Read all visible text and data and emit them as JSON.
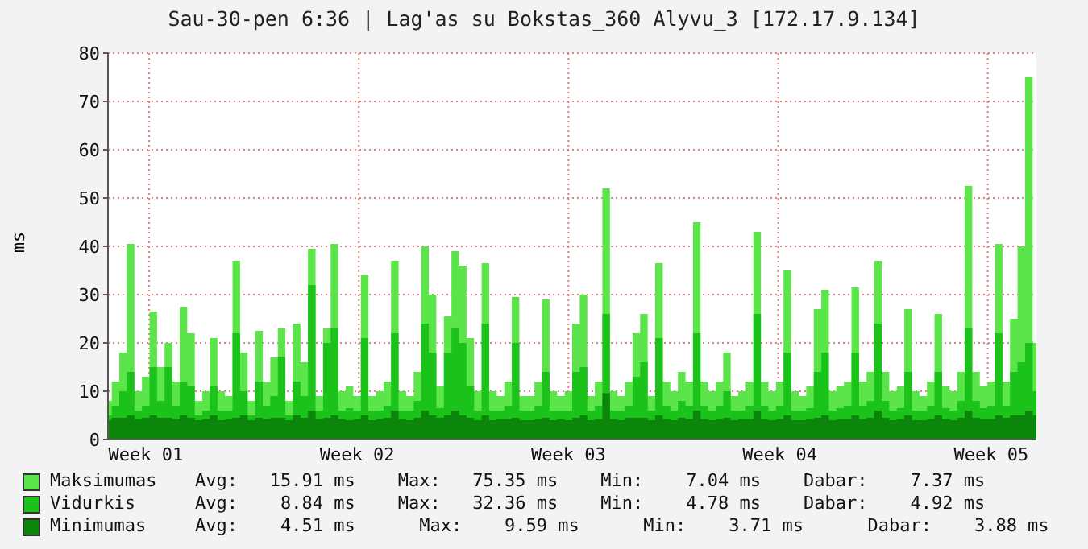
{
  "chart_data": {
    "type": "area",
    "title": "Sau-30-pen 6:36 | Lag'as su Bokstas_360 Alyvu_3 [172.17.9.134]",
    "ylabel": "ms",
    "categories": [
      null,
      null,
      null,
      null,
      null,
      "Week 01",
      null,
      null,
      null,
      null,
      null,
      null,
      null,
      null,
      null,
      null,
      null,
      null,
      null,
      null,
      null,
      null,
      null,
      null,
      null,
      null,
      null,
      null,
      null,
      null,
      null,
      null,
      null,
      "Week 02",
      null,
      null,
      null,
      null,
      null,
      null,
      null,
      null,
      null,
      null,
      null,
      null,
      null,
      null,
      null,
      null,
      null,
      null,
      null,
      null,
      null,
      null,
      null,
      null,
      null,
      null,
      null,
      "Week 03",
      null,
      null,
      null,
      null,
      null,
      null,
      null,
      null,
      null,
      null,
      null,
      null,
      null,
      null,
      null,
      null,
      null,
      null,
      null,
      null,
      null,
      null,
      null,
      null,
      null,
      null,
      null,
      "Week 04",
      null,
      null,
      null,
      null,
      null,
      null,
      null,
      null,
      null,
      null,
      null,
      null,
      null,
      null,
      null,
      null,
      null,
      null,
      null,
      null,
      null,
      null,
      null,
      null,
      null,
      null,
      null,
      "Week 05",
      null,
      null,
      null,
      null,
      null,
      null
    ],
    "series": [
      {
        "name": "Maksimumas",
        "color": "#5be54b",
        "values": [
          8,
          12,
          18,
          40.5,
          10,
          13,
          26.5,
          15,
          20,
          12,
          27.5,
          22,
          8,
          10,
          21,
          10,
          9,
          37,
          18,
          8,
          22.5,
          12,
          17,
          23,
          8,
          24,
          16,
          39.5,
          9,
          23,
          40.5,
          10,
          11,
          9,
          34,
          9,
          10,
          12,
          37,
          10,
          9,
          14,
          40,
          30,
          11,
          25.5,
          39,
          36,
          21,
          10,
          36.5,
          10,
          9,
          12,
          29.5,
          9,
          9,
          12,
          29,
          10,
          9,
          10,
          24,
          30,
          9,
          12,
          52,
          10,
          9,
          12,
          22,
          26,
          9,
          36.5,
          12,
          10,
          14,
          12,
          45,
          12,
          10,
          12,
          18,
          9,
          10,
          12,
          43,
          12,
          10,
          12,
          35,
          10,
          9,
          11,
          27,
          31,
          10,
          11,
          12,
          31.5,
          12,
          14,
          37,
          14,
          10,
          11,
          27,
          10,
          9,
          12,
          26,
          11,
          10,
          14,
          52.5,
          14,
          11,
          12,
          40.5,
          12,
          25,
          40,
          75,
          20
        ]
      },
      {
        "name": "Vidurkis",
        "color": "#1ac21a",
        "values": [
          5,
          7,
          10,
          14,
          6,
          7,
          15,
          8,
          15,
          7,
          12,
          11,
          5,
          6,
          11,
          6,
          6,
          22,
          10,
          5,
          12,
          7,
          9,
          17,
          5,
          12,
          9,
          32,
          6,
          20,
          23,
          6,
          6.5,
          6,
          21,
          6,
          6,
          7,
          22,
          6,
          6,
          8,
          24,
          18,
          6.5,
          18,
          23,
          20,
          11,
          6,
          24,
          6,
          6,
          7,
          20,
          6,
          6,
          7,
          14,
          6,
          6,
          6,
          14,
          15,
          6,
          7,
          26,
          6,
          6,
          7,
          13,
          16,
          6,
          21,
          7,
          6,
          8,
          7,
          22,
          7,
          6,
          7,
          10,
          6,
          6,
          7,
          26,
          7,
          6,
          7,
          18,
          6,
          6,
          6.5,
          14,
          18,
          6,
          6.5,
          7,
          18,
          7,
          8,
          24,
          8,
          6,
          6.5,
          14,
          6,
          6,
          7,
          14,
          6.5,
          6,
          8,
          23,
          8,
          6.5,
          7,
          22,
          7,
          14,
          16,
          20,
          10
        ]
      },
      {
        "name": "Minimumas",
        "color": "#0b860b",
        "values": [
          4,
          4.5,
          4.5,
          5,
          4.2,
          4.5,
          5,
          4.5,
          4.5,
          4.2,
          5,
          4.5,
          4,
          4.2,
          5,
          4,
          4.2,
          4.5,
          5,
          4,
          4.5,
          4.2,
          4.5,
          4.5,
          4,
          5,
          4.5,
          6,
          4.2,
          4.5,
          5,
          4.2,
          4,
          4.2,
          5,
          4,
          4.2,
          4.5,
          6,
          4.2,
          4,
          4.5,
          6,
          5,
          4.5,
          5,
          6,
          5,
          4.5,
          4,
          5,
          4,
          4.2,
          4.2,
          4.5,
          4,
          4,
          4.2,
          4.5,
          4,
          4.2,
          4,
          4.5,
          5,
          4,
          4.2,
          9.6,
          4.2,
          4,
          4.5,
          4.5,
          4.5,
          4,
          5,
          4.2,
          4,
          4.5,
          4.2,
          6,
          4.2,
          4,
          4.2,
          4.5,
          4,
          4.2,
          4.2,
          6,
          4.2,
          4,
          4.2,
          5,
          4,
          4,
          4.2,
          4.5,
          5,
          4,
          4.2,
          4.2,
          5,
          4.2,
          4.5,
          6,
          4.5,
          4,
          4.2,
          5,
          4,
          4,
          4.2,
          5,
          4.2,
          4,
          4.5,
          6,
          4.5,
          4.2,
          4.2,
          5,
          4.5,
          5,
          5,
          6,
          5
        ]
      }
    ],
    "annotations": [
      "Avg:   15.91 ms    Max:   75.35 ms    Min:    7.04 ms    Dabar:    7.37 ms",
      "Avg:    8.84 ms    Max:   32.36 ms    Min:    4.78 ms    Dabar:    4.92 ms",
      "Avg:    4.51 ms      Max:    9.59 ms      Min:    3.71 ms      Dabar:    3.88 ms"
    ],
    "ylim": [
      0,
      80
    ],
    "yticks": [
      0,
      10,
      20,
      30,
      40,
      50,
      60,
      70,
      80
    ],
    "grid": true,
    "legend": "bottom"
  }
}
